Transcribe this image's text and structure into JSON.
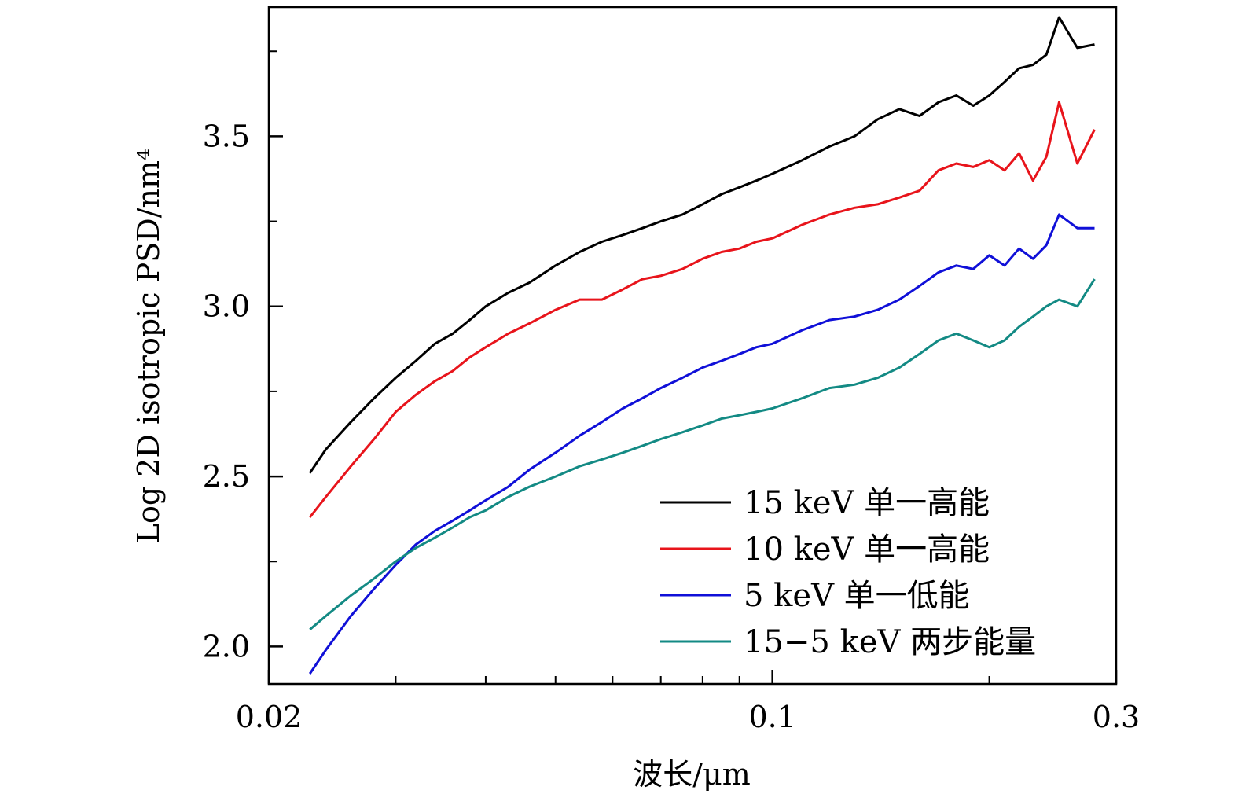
{
  "chart_data": {
    "type": "line",
    "title": "",
    "xlabel": "波长/μm",
    "ylabel": "Log 2D isotropic PSD/nm⁴",
    "x_scale": "log",
    "xlim": [
      0.02,
      0.3
    ],
    "ylim": [
      1.89,
      3.88
    ],
    "x_ticks": [
      {
        "value": 0.02,
        "label": "0.02"
      },
      {
        "value": 0.1,
        "label": "0.1"
      },
      {
        "value": 0.3,
        "label": "0.3"
      }
    ],
    "y_ticks": [
      {
        "value": 2.0,
        "label": "2.0"
      },
      {
        "value": 2.5,
        "label": "2.5"
      },
      {
        "value": 3.0,
        "label": "3.0"
      },
      {
        "value": 3.5,
        "label": "3.5"
      }
    ],
    "grid": false,
    "legend_position": "bottom-right",
    "series": [
      {
        "name": "15 keV 单一高能",
        "color": "#000000",
        "x": [
          0.0228,
          0.024,
          0.026,
          0.028,
          0.03,
          0.032,
          0.034,
          0.036,
          0.038,
          0.04,
          0.043,
          0.046,
          0.05,
          0.054,
          0.058,
          0.062,
          0.066,
          0.07,
          0.075,
          0.08,
          0.085,
          0.09,
          0.095,
          0.1,
          0.11,
          0.12,
          0.13,
          0.14,
          0.15,
          0.16,
          0.17,
          0.18,
          0.19,
          0.2,
          0.21,
          0.22,
          0.23,
          0.24,
          0.25,
          0.265,
          0.28
        ],
        "y": [
          2.51,
          2.58,
          2.66,
          2.73,
          2.79,
          2.84,
          2.89,
          2.92,
          2.96,
          3.0,
          3.04,
          3.07,
          3.12,
          3.16,
          3.19,
          3.21,
          3.23,
          3.25,
          3.27,
          3.3,
          3.33,
          3.35,
          3.37,
          3.39,
          3.43,
          3.47,
          3.5,
          3.55,
          3.58,
          3.56,
          3.6,
          3.62,
          3.59,
          3.62,
          3.66,
          3.7,
          3.71,
          3.74,
          3.85,
          3.76,
          3.77
        ]
      },
      {
        "name": "10 keV 单一高能",
        "color": "#e8141b",
        "x": [
          0.0228,
          0.024,
          0.026,
          0.028,
          0.03,
          0.032,
          0.034,
          0.036,
          0.038,
          0.04,
          0.043,
          0.046,
          0.05,
          0.054,
          0.058,
          0.062,
          0.066,
          0.07,
          0.075,
          0.08,
          0.085,
          0.09,
          0.095,
          0.1,
          0.11,
          0.12,
          0.13,
          0.14,
          0.15,
          0.16,
          0.17,
          0.18,
          0.19,
          0.2,
          0.21,
          0.22,
          0.23,
          0.24,
          0.25,
          0.265,
          0.28
        ],
        "y": [
          2.38,
          2.44,
          2.53,
          2.61,
          2.69,
          2.74,
          2.78,
          2.81,
          2.85,
          2.88,
          2.92,
          2.95,
          2.99,
          3.02,
          3.02,
          3.05,
          3.08,
          3.09,
          3.11,
          3.14,
          3.16,
          3.17,
          3.19,
          3.2,
          3.24,
          3.27,
          3.29,
          3.3,
          3.32,
          3.34,
          3.4,
          3.42,
          3.41,
          3.43,
          3.4,
          3.45,
          3.37,
          3.44,
          3.6,
          3.42,
          3.52
        ]
      },
      {
        "name": "5 keV 单一低能",
        "color": "#1010d8",
        "x": [
          0.0228,
          0.024,
          0.026,
          0.028,
          0.03,
          0.032,
          0.034,
          0.036,
          0.038,
          0.04,
          0.043,
          0.046,
          0.05,
          0.054,
          0.058,
          0.062,
          0.066,
          0.07,
          0.075,
          0.08,
          0.085,
          0.09,
          0.095,
          0.1,
          0.11,
          0.12,
          0.13,
          0.14,
          0.15,
          0.16,
          0.17,
          0.18,
          0.19,
          0.2,
          0.21,
          0.22,
          0.23,
          0.24,
          0.25,
          0.265,
          0.28
        ],
        "y": [
          1.92,
          1.99,
          2.09,
          2.17,
          2.24,
          2.3,
          2.34,
          2.37,
          2.4,
          2.43,
          2.47,
          2.52,
          2.57,
          2.62,
          2.66,
          2.7,
          2.73,
          2.76,
          2.79,
          2.82,
          2.84,
          2.86,
          2.88,
          2.89,
          2.93,
          2.96,
          2.97,
          2.99,
          3.02,
          3.06,
          3.1,
          3.12,
          3.11,
          3.15,
          3.12,
          3.17,
          3.14,
          3.18,
          3.27,
          3.23,
          3.23
        ]
      },
      {
        "name": "15−5 keV 两步能量",
        "color": "#138a84",
        "x": [
          0.0228,
          0.024,
          0.026,
          0.028,
          0.03,
          0.032,
          0.034,
          0.036,
          0.038,
          0.04,
          0.043,
          0.046,
          0.05,
          0.054,
          0.058,
          0.062,
          0.066,
          0.07,
          0.075,
          0.08,
          0.085,
          0.09,
          0.095,
          0.1,
          0.11,
          0.12,
          0.13,
          0.14,
          0.15,
          0.16,
          0.17,
          0.18,
          0.19,
          0.2,
          0.21,
          0.22,
          0.23,
          0.24,
          0.25,
          0.265,
          0.28
        ],
        "y": [
          2.05,
          2.09,
          2.15,
          2.2,
          2.25,
          2.29,
          2.32,
          2.35,
          2.38,
          2.4,
          2.44,
          2.47,
          2.5,
          2.53,
          2.55,
          2.57,
          2.59,
          2.61,
          2.63,
          2.65,
          2.67,
          2.68,
          2.69,
          2.7,
          2.73,
          2.76,
          2.77,
          2.79,
          2.82,
          2.86,
          2.9,
          2.92,
          2.9,
          2.88,
          2.9,
          2.94,
          2.97,
          3.0,
          3.02,
          3.0,
          3.08
        ]
      }
    ]
  }
}
